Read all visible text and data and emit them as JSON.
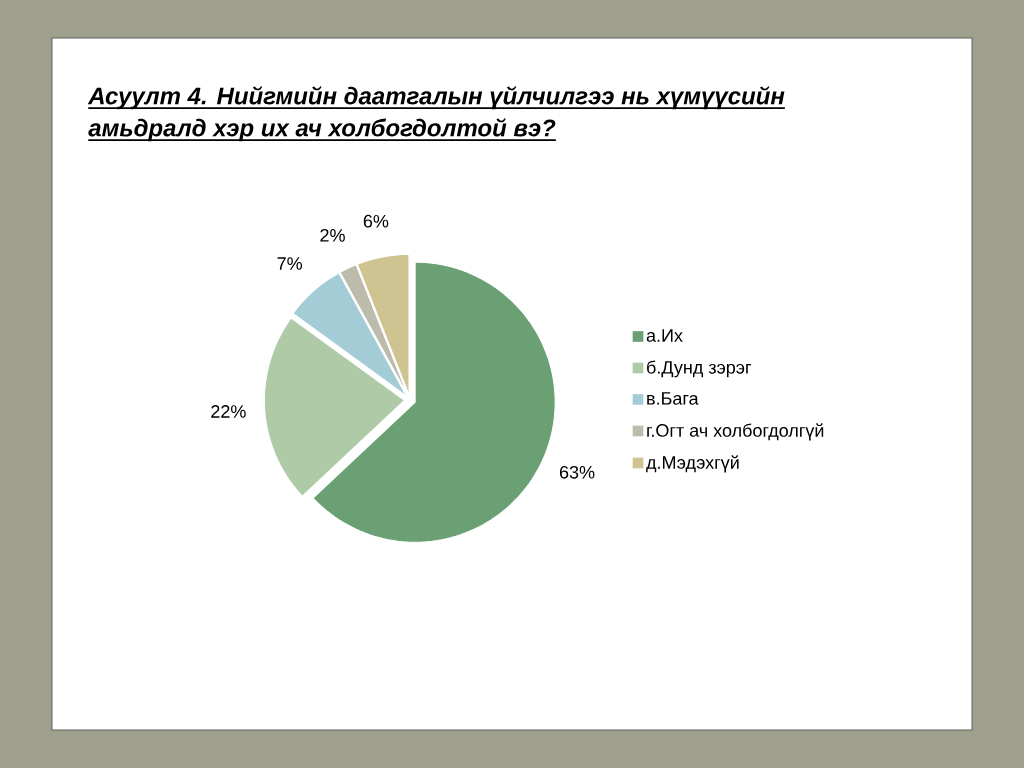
{
  "chart_data": {
    "type": "pie",
    "title": "Асуулт 4. Нийгмийн даатгалын үйлчилгээ нь хүмүүсийн амьдралд хэр их ач холбогдолтой вэ?",
    "categories": [
      "а.Их",
      "б.Дунд зэрэг",
      "в.Бага",
      "г.Огт ач холбогдолгүй",
      "д.Мэдэхгүй"
    ],
    "values": [
      63,
      22,
      7,
      2,
      6
    ],
    "colors": [
      "#6aa074",
      "#aecaa7",
      "#a4ccd6",
      "#bdbbab",
      "#cfc391"
    ],
    "value_labels": [
      "63%",
      "22%",
      "7%",
      "2%",
      "6%"
    ],
    "legend": "right"
  }
}
